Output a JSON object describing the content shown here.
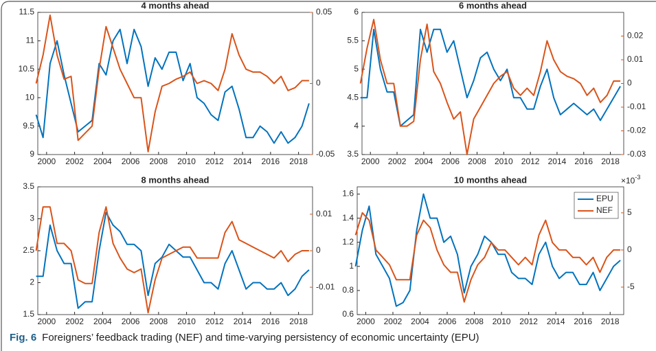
{
  "chart_data": [
    {
      "type": "line",
      "title": "4 months ahead",
      "x": [
        1999.25,
        1999.75,
        2000.25,
        2000.75,
        2001.25,
        2001.75,
        2002.25,
        2002.75,
        2003.25,
        2003.75,
        2004.25,
        2004.75,
        2005.25,
        2005.75,
        2006.25,
        2006.75,
        2007.25,
        2007.75,
        2008.25,
        2008.75,
        2009.25,
        2009.75,
        2010.25,
        2010.75,
        2011.25,
        2011.75,
        2012.25,
        2012.75,
        2013.25,
        2013.75,
        2014.25,
        2014.75,
        2015.25,
        2015.75,
        2016.25,
        2016.75,
        2017.25,
        2017.75,
        2018.25,
        2018.75
      ],
      "series": [
        {
          "name": "EPU",
          "color": "#0072bd",
          "values": [
            9.7,
            9.3,
            10.6,
            11.0,
            10.4,
            9.9,
            9.4,
            9.5,
            9.6,
            10.6,
            10.4,
            11.0,
            11.2,
            10.6,
            11.2,
            10.9,
            10.2,
            10.7,
            10.5,
            10.8,
            10.8,
            10.3,
            10.6,
            10.0,
            9.9,
            9.7,
            9.6,
            10.1,
            10.2,
            9.8,
            9.3,
            9.3,
            9.5,
            9.4,
            9.2,
            9.4,
            9.2,
            9.3,
            9.5,
            9.9
          ]
        },
        {
          "name": "NEF",
          "color": "#d95319",
          "axis": "y2",
          "values": [
            0.0,
            0.02,
            0.048,
            0.02,
            0.003,
            0.005,
            -0.04,
            -0.035,
            -0.03,
            0.01,
            0.04,
            0.025,
            0.01,
            0.0,
            -0.01,
            -0.01,
            -0.048,
            -0.02,
            -0.002,
            0.0,
            0.003,
            0.005,
            0.008,
            0.0,
            0.002,
            0.0,
            -0.005,
            0.01,
            0.035,
            0.02,
            0.01,
            0.008,
            0.008,
            0.005,
            0.0,
            0.005,
            -0.005,
            -0.003,
            0.002,
            0.002
          ]
        }
      ],
      "xlim": [
        1999.37,
        2019
      ],
      "xticks": [
        2000,
        2002,
        2004,
        2006,
        2008,
        2010,
        2012,
        2014,
        2016,
        2018
      ],
      "ylim": [
        9,
        11.5
      ],
      "yticks": [
        9,
        9.5,
        10,
        10.5,
        11,
        11.5
      ],
      "y2lim": [
        -0.05,
        0.05
      ],
      "y2ticks": [
        -0.05,
        0,
        0.05
      ]
    },
    {
      "type": "line",
      "title": "6 months ahead",
      "x": [
        1999.25,
        1999.75,
        2000.25,
        2000.75,
        2001.25,
        2001.75,
        2002.25,
        2002.75,
        2003.25,
        2003.75,
        2004.25,
        2004.75,
        2005.25,
        2005.75,
        2006.25,
        2006.75,
        2007.25,
        2007.75,
        2008.25,
        2008.75,
        2009.25,
        2009.75,
        2010.25,
        2010.75,
        2011.25,
        2011.75,
        2012.25,
        2012.75,
        2013.25,
        2013.75,
        2014.25,
        2014.75,
        2015.25,
        2015.75,
        2016.25,
        2016.75,
        2017.25,
        2017.75,
        2018.25,
        2018.75
      ],
      "series": [
        {
          "name": "EPU",
          "color": "#0072bd",
          "values": [
            4.5,
            4.5,
            5.7,
            5.0,
            4.6,
            4.6,
            4.0,
            4.1,
            4.2,
            5.7,
            5.3,
            5.7,
            5.7,
            5.3,
            5.5,
            5.0,
            4.5,
            4.8,
            5.2,
            5.3,
            5.0,
            4.8,
            5.0,
            4.5,
            4.5,
            4.3,
            4.3,
            4.7,
            5.0,
            4.5,
            4.2,
            4.3,
            4.4,
            4.3,
            4.2,
            4.3,
            4.1,
            4.3,
            4.5,
            4.7
          ]
        },
        {
          "name": "NEF",
          "color": "#d95319",
          "axis": "y2",
          "values": [
            0.0,
            0.015,
            0.027,
            0.01,
            0.0,
            0.0,
            -0.018,
            -0.018,
            -0.016,
            0.01,
            0.025,
            0.005,
            0.0,
            -0.008,
            -0.015,
            -0.012,
            -0.03,
            -0.015,
            -0.01,
            -0.005,
            0.0,
            0.003,
            0.005,
            -0.002,
            -0.005,
            -0.002,
            -0.005,
            0.005,
            0.018,
            0.01,
            0.005,
            0.003,
            0.002,
            0.0,
            -0.005,
            -0.002,
            -0.008,
            -0.005,
            0.001,
            0.001
          ]
        }
      ],
      "xlim": [
        1999.37,
        2019
      ],
      "xticks": [
        2000,
        2002,
        2004,
        2006,
        2008,
        2010,
        2012,
        2014,
        2016,
        2018
      ],
      "ylim": [
        3.5,
        6
      ],
      "yticks": [
        3.5,
        4,
        4.5,
        5,
        5.5,
        6
      ],
      "y2lim": [
        -0.03,
        0.03
      ],
      "y2ticks": [
        -0.03,
        -0.02,
        -0.01,
        0,
        0.01,
        0.02
      ]
    },
    {
      "type": "line",
      "title": "8 months ahead",
      "x": [
        1999.25,
        1999.75,
        2000.25,
        2000.75,
        2001.25,
        2001.75,
        2002.25,
        2002.75,
        2003.25,
        2003.75,
        2004.25,
        2004.75,
        2005.25,
        2005.75,
        2006.25,
        2006.75,
        2007.25,
        2007.75,
        2008.25,
        2008.75,
        2009.25,
        2009.75,
        2010.25,
        2010.75,
        2011.25,
        2011.75,
        2012.25,
        2012.75,
        2013.25,
        2013.75,
        2014.25,
        2014.75,
        2015.25,
        2015.75,
        2016.25,
        2016.75,
        2017.25,
        2017.75,
        2018.25,
        2018.75
      ],
      "series": [
        {
          "name": "EPU",
          "color": "#0072bd",
          "values": [
            2.1,
            2.1,
            2.9,
            2.5,
            2.3,
            2.3,
            1.6,
            1.7,
            1.7,
            2.5,
            3.1,
            2.9,
            2.8,
            2.6,
            2.6,
            2.5,
            1.8,
            2.3,
            2.4,
            2.6,
            2.5,
            2.4,
            2.4,
            2.2,
            2.0,
            2.0,
            1.9,
            2.3,
            2.5,
            2.2,
            1.9,
            2.0,
            2.0,
            1.9,
            1.9,
            2.0,
            1.8,
            1.9,
            2.1,
            2.2
          ]
        },
        {
          "name": "NEF",
          "color": "#d95319",
          "axis": "y2",
          "values": [
            0.0,
            0.012,
            0.012,
            0.002,
            0.002,
            0.0,
            -0.008,
            -0.009,
            -0.009,
            0.005,
            0.012,
            0.002,
            -0.002,
            -0.005,
            -0.006,
            -0.005,
            -0.017,
            -0.008,
            -0.002,
            -0.001,
            0.0,
            0.001,
            0.001,
            -0.002,
            -0.002,
            -0.002,
            -0.002,
            0.005,
            0.008,
            0.003,
            0.002,
            0.001,
            0.0,
            -0.001,
            -0.002,
            0.0,
            -0.003,
            -0.001,
            0.0,
            0.0
          ]
        }
      ],
      "xlim": [
        1999.37,
        2019
      ],
      "xticks": [
        2000,
        2002,
        2004,
        2006,
        2008,
        2010,
        2012,
        2014,
        2016,
        2018
      ],
      "ylim": [
        1.5,
        3.5
      ],
      "yticks": [
        1.5,
        2,
        2.5,
        3,
        3.5
      ],
      "y2lim": [
        -0.0175,
        0.0175
      ],
      "y2ticks": [
        -0.01,
        0,
        0.01
      ]
    },
    {
      "type": "line",
      "title": "10 months ahead",
      "x": [
        1999.25,
        1999.75,
        2000.25,
        2000.75,
        2001.25,
        2001.75,
        2002.25,
        2002.75,
        2003.25,
        2003.75,
        2004.25,
        2004.75,
        2005.25,
        2005.75,
        2006.25,
        2006.75,
        2007.25,
        2007.75,
        2008.25,
        2008.75,
        2009.25,
        2009.75,
        2010.25,
        2010.75,
        2011.25,
        2011.75,
        2012.25,
        2012.75,
        2013.25,
        2013.75,
        2014.25,
        2014.75,
        2015.25,
        2015.75,
        2016.25,
        2016.75,
        2017.25,
        2017.75,
        2018.25,
        2018.75
      ],
      "series": [
        {
          "name": "EPU",
          "color": "#0072bd",
          "values": [
            1.0,
            1.3,
            1.5,
            1.1,
            1.0,
            0.9,
            0.67,
            0.7,
            0.8,
            1.3,
            1.6,
            1.4,
            1.4,
            1.2,
            1.25,
            1.1,
            0.78,
            1.0,
            1.1,
            1.25,
            1.2,
            1.1,
            1.1,
            0.95,
            0.9,
            0.9,
            0.85,
            1.1,
            1.2,
            1.0,
            0.9,
            0.95,
            0.95,
            0.85,
            0.85,
            0.95,
            0.8,
            0.9,
            1.0,
            1.05
          ]
        },
        {
          "name": "NEF",
          "color": "#d95319",
          "axis": "y2",
          "values": [
            2,
            5,
            4,
            0,
            -1,
            -2,
            -4,
            -4,
            -4,
            2,
            4,
            3,
            0,
            -2,
            -3,
            -3,
            -7,
            -4,
            -2,
            -1,
            1,
            0,
            0,
            -1,
            -2,
            -1,
            -2,
            2,
            4,
            1,
            0,
            0,
            -1,
            -1,
            -2,
            -1,
            -3,
            -1,
            0,
            0
          ]
        }
      ],
      "xlim": [
        1999.37,
        2019
      ],
      "xticks": [
        2000,
        2002,
        2004,
        2006,
        2008,
        2010,
        2012,
        2014,
        2016,
        2018
      ],
      "ylim": [
        0.6,
        1.66
      ],
      "yticks": [
        0.6,
        0.8,
        1,
        1.2,
        1.4,
        1.6
      ],
      "y2lim": [
        -8.7,
        8.5
      ],
      "y2ticks": [
        -5,
        0,
        5
      ],
      "y2_scale": {
        "base": "×10",
        "exponent": "-3"
      },
      "legend": "upper right"
    }
  ],
  "caption": {
    "label": "Fig. 6",
    "text": "Foreigners’ feedback trading (NEF) and time-varying persistency of economic uncertainty (EPU)"
  }
}
